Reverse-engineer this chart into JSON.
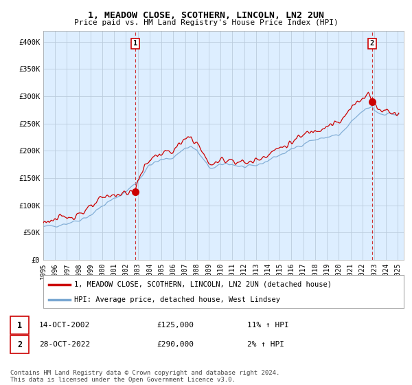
{
  "title": "1, MEADOW CLOSE, SCOTHERN, LINCOLN, LN2 2UN",
  "subtitle": "Price paid vs. HM Land Registry's House Price Index (HPI)",
  "ylabel_ticks": [
    "£0",
    "£50K",
    "£100K",
    "£150K",
    "£200K",
    "£250K",
    "£300K",
    "£350K",
    "£400K"
  ],
  "ytick_values": [
    0,
    50000,
    100000,
    150000,
    200000,
    250000,
    300000,
    350000,
    400000
  ],
  "ylim": [
    0,
    420000
  ],
  "xlim_start": 1995.0,
  "xlim_end": 2025.5,
  "legend_line1": "1, MEADOW CLOSE, SCOTHERN, LINCOLN, LN2 2UN (detached house)",
  "legend_line2": "HPI: Average price, detached house, West Lindsey",
  "transaction1_label": "1",
  "transaction1_date": "14-OCT-2002",
  "transaction1_price": "£125,000",
  "transaction1_hpi": "11% ↑ HPI",
  "transaction2_label": "2",
  "transaction2_date": "28-OCT-2022",
  "transaction2_price": "£290,000",
  "transaction2_hpi": "2% ↑ HPI",
  "footer": "Contains HM Land Registry data © Crown copyright and database right 2024.\nThis data is licensed under the Open Government Licence v3.0.",
  "red_color": "#cc0000",
  "blue_color": "#7aa8d2",
  "chart_bg": "#ddeeff",
  "grid_color": "#bbccdd",
  "vline_color": "#cc0000",
  "background_color": "#ffffff",
  "transaction1_x": 2002.79,
  "transaction1_y": 125000,
  "transaction2_x": 2022.82,
  "transaction2_y": 290000,
  "xtick_years": [
    1995,
    1996,
    1997,
    1998,
    1999,
    2000,
    2001,
    2002,
    2003,
    2004,
    2005,
    2006,
    2007,
    2008,
    2009,
    2010,
    2011,
    2012,
    2013,
    2014,
    2015,
    2016,
    2017,
    2018,
    2019,
    2020,
    2021,
    2022,
    2023,
    2024,
    2025
  ]
}
